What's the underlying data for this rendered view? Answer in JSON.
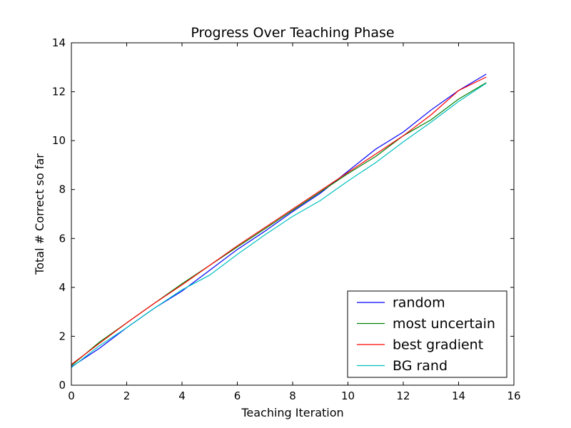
{
  "chart_data": {
    "type": "line",
    "title": "Progress Over Teaching Phase",
    "xlabel": "Teaching Iteration",
    "ylabel": "Total # Correct so far",
    "xlim": [
      0,
      16
    ],
    "ylim": [
      0,
      14
    ],
    "xticks": [
      0,
      2,
      4,
      6,
      8,
      10,
      12,
      14,
      16
    ],
    "yticks": [
      0,
      2,
      4,
      6,
      8,
      10,
      12,
      14
    ],
    "grid": false,
    "legend_position": "lower-right",
    "x": [
      0,
      1,
      2,
      3,
      4,
      5,
      6,
      7,
      8,
      9,
      10,
      11,
      12,
      13,
      14,
      15
    ],
    "series": [
      {
        "name": "random",
        "color": "#0000ff",
        "values": [
          0.75,
          1.5,
          2.35,
          3.15,
          3.85,
          4.7,
          5.55,
          6.3,
          7.1,
          7.85,
          8.75,
          9.65,
          10.35,
          11.25,
          12.05,
          12.72
        ]
      },
      {
        "name": "most uncertain",
        "color": "#008000",
        "values": [
          0.8,
          1.75,
          2.55,
          3.35,
          4.15,
          4.9,
          5.65,
          6.4,
          7.15,
          7.9,
          8.65,
          9.35,
          10.2,
          10.85,
          11.7,
          12.37
        ]
      },
      {
        "name": "best gradient",
        "color": "#ff0000",
        "values": [
          0.85,
          1.7,
          2.55,
          3.35,
          4.1,
          4.9,
          5.7,
          6.45,
          7.2,
          7.95,
          8.7,
          9.45,
          10.2,
          11.05,
          12.05,
          12.6
        ]
      },
      {
        "name": "BG rand",
        "color": "#00bfbf",
        "values": [
          0.72,
          1.6,
          2.35,
          3.15,
          3.9,
          4.5,
          5.35,
          6.15,
          6.9,
          7.55,
          8.35,
          9.1,
          9.95,
          10.75,
          11.6,
          12.35
        ]
      }
    ]
  }
}
